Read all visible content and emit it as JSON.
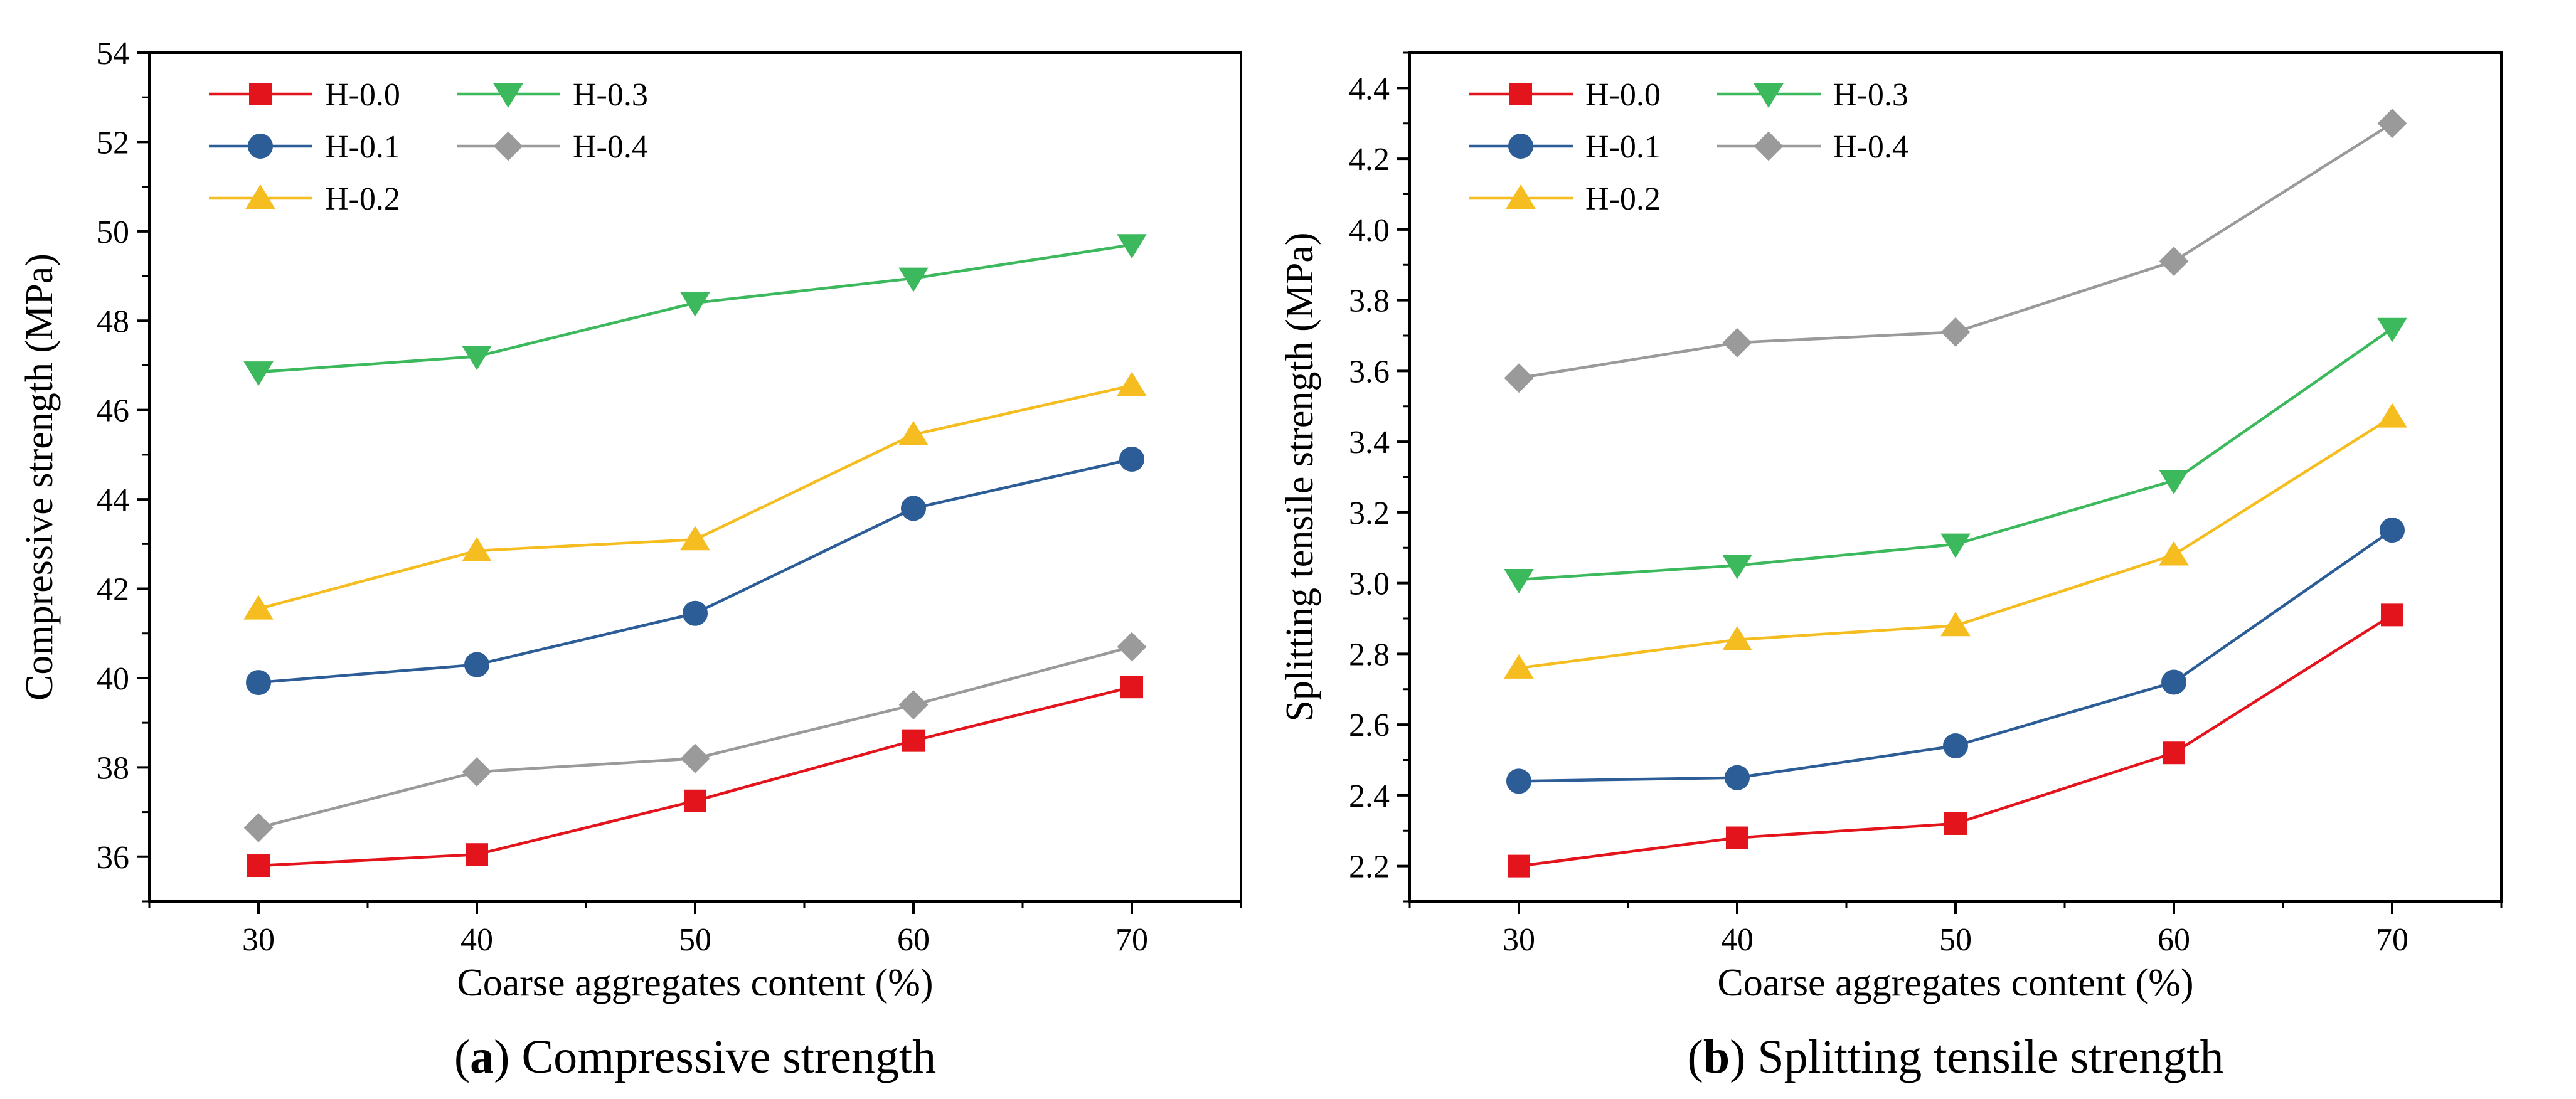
{
  "chart_data": [
    {
      "id": "a",
      "type": "line",
      "caption_letter": "a",
      "caption_text": "Compressive strength",
      "xlabel": "Coarse aggregates content (%)",
      "ylabel": "Compressive strength (MPa)",
      "x": [
        30,
        40,
        50,
        60,
        70
      ],
      "xticks": [
        "30",
        "40",
        "50",
        "60",
        "70"
      ],
      "xlim": [
        25,
        75
      ],
      "ylim": [
        35,
        54
      ],
      "yticks": [
        "36",
        "38",
        "40",
        "42",
        "44",
        "46",
        "48",
        "50",
        "52",
        "54"
      ],
      "ytick_values": [
        36,
        38,
        40,
        42,
        44,
        46,
        48,
        50,
        52,
        54
      ],
      "legend_position": "top-left",
      "series": [
        {
          "name": "H-0.0",
          "color": "#e3141c",
          "marker": "square",
          "values": [
            35.8,
            36.05,
            37.25,
            38.6,
            39.8
          ]
        },
        {
          "name": "H-0.1",
          "color": "#2c5d97",
          "marker": "circle",
          "values": [
            39.9,
            40.3,
            41.45,
            43.8,
            44.9
          ]
        },
        {
          "name": "H-0.2",
          "color": "#f5bd1f",
          "marker": "triangle-up",
          "values": [
            41.55,
            42.85,
            43.1,
            45.45,
            46.55
          ]
        },
        {
          "name": "H-0.3",
          "color": "#3cb95c",
          "marker": "triangle-down",
          "values": [
            46.85,
            47.2,
            48.4,
            48.95,
            49.7
          ]
        },
        {
          "name": "H-0.4",
          "color": "#9a9a9a",
          "marker": "diamond",
          "values": [
            36.65,
            37.9,
            38.2,
            39.4,
            40.7
          ]
        }
      ]
    },
    {
      "id": "b",
      "type": "line",
      "caption_letter": "b",
      "caption_text": "Splitting tensile strength",
      "xlabel": "Coarse aggregates content (%)",
      "ylabel": "Splitting tensile strength (MPa)",
      "x": [
        30,
        40,
        50,
        60,
        70
      ],
      "xticks": [
        "30",
        "40",
        "50",
        "60",
        "70"
      ],
      "xlim": [
        25,
        75
      ],
      "ylim": [
        2.1,
        4.5
      ],
      "yticks": [
        "2.2",
        "2.4",
        "2.6",
        "2.8",
        "3.0",
        "3.2",
        "3.4",
        "3.6",
        "3.8",
        "4.0",
        "4.2",
        "4.4"
      ],
      "ytick_values": [
        2.2,
        2.4,
        2.6,
        2.8,
        3.0,
        3.2,
        3.4,
        3.6,
        3.8,
        4.0,
        4.2,
        4.4
      ],
      "legend_position": "top-left",
      "series": [
        {
          "name": "H-0.0",
          "color": "#e3141c",
          "marker": "square",
          "values": [
            2.2,
            2.28,
            2.32,
            2.52,
            2.91
          ]
        },
        {
          "name": "H-0.1",
          "color": "#2c5d97",
          "marker": "circle",
          "values": [
            2.44,
            2.45,
            2.54,
            2.72,
            3.15
          ]
        },
        {
          "name": "H-0.2",
          "color": "#f5bd1f",
          "marker": "triangle-up",
          "values": [
            2.76,
            2.84,
            2.88,
            3.08,
            3.47
          ]
        },
        {
          "name": "H-0.3",
          "color": "#3cb95c",
          "marker": "triangle-down",
          "values": [
            3.01,
            3.05,
            3.11,
            3.29,
            3.72
          ]
        },
        {
          "name": "H-0.4",
          "color": "#9a9a9a",
          "marker": "diamond",
          "values": [
            3.58,
            3.68,
            3.71,
            3.91,
            4.3
          ]
        }
      ]
    }
  ]
}
